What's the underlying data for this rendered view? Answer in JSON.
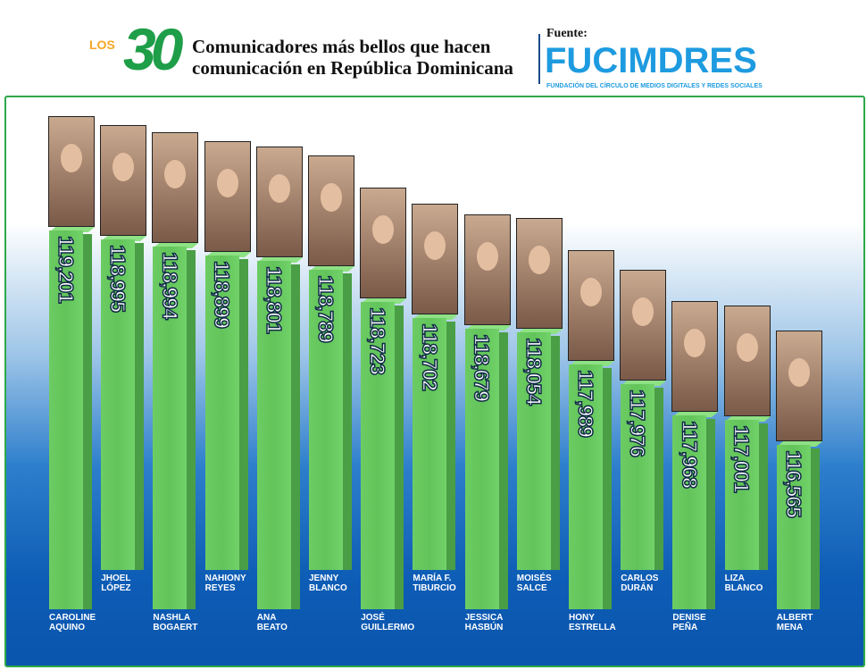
{
  "header": {
    "logo_small": "LOS",
    "logo_number": "30",
    "title_line1": "Comunicadores más bellos que hacen",
    "title_line2": "comunicación en República Dominicana",
    "source_label": "Fuente:",
    "source_brand": "FUCIMDRES",
    "source_subtitle": "FUNDACIÓN DEL CÍRCULO DE MEDIOS DIGITALES Y REDES SOCIALES"
  },
  "colors": {
    "bar": "#62c45a",
    "bar_side": "#4a9e45",
    "background_bottom": "#0a55ad",
    "brand": "#1e9be0",
    "logo": "#1e9e48"
  },
  "chart_data": {
    "type": "bar",
    "categories": [
      "CAROLINE AQUINO",
      "JHOEL LÓPEZ",
      "NASHLA BOGAERT",
      "NAHIONY REYES",
      "ANA BEATO",
      "JENNY BLANCO",
      "JOSÉ GUILLERMO",
      "MARÍA F. TIBURCIO",
      "JESSICA HASBÚN",
      "MOISÉS SALCE",
      "HONY ESTRELLA",
      "CARLOS DURÁN",
      "DENISE PEÑA",
      "LIZA BLANCO",
      "ALBERT MENA"
    ],
    "name_lines": [
      [
        "CAROLINE",
        "AQUINO"
      ],
      [
        "JHOEL",
        "LÓPEZ"
      ],
      [
        "NASHLA",
        "BOGAERT"
      ],
      [
        "NAHIONY",
        "REYES"
      ],
      [
        "ANA",
        "BEATO"
      ],
      [
        "JENNY",
        "BLANCO"
      ],
      [
        "JOSÉ",
        "GUILLERMO"
      ],
      [
        "MARÍA F.",
        "TIBURCIO"
      ],
      [
        "JESSICA",
        "HASBÚN"
      ],
      [
        "MOISÉS",
        "SALCE"
      ],
      [
        "HONY",
        "ESTRELLA"
      ],
      [
        "CARLOS",
        "DURÁN"
      ],
      [
        "DENISE",
        "PEÑA"
      ],
      [
        "LIZA",
        "BLANCO"
      ],
      [
        "ALBERT",
        "MENA"
      ]
    ],
    "values": [
      119201,
      118995,
      118994,
      118899,
      118801,
      118789,
      118723,
      118702,
      118679,
      118054,
      117989,
      117976,
      117968,
      117001,
      116565
    ],
    "labels": [
      "119,201",
      "118,995",
      "118,994",
      "118,899",
      "118,801",
      "118,789",
      "118,723",
      "118,702",
      "118,679",
      "118,054",
      "117,989",
      "117,976",
      "117,968",
      "117,001",
      "116,565"
    ],
    "grid": false
  }
}
